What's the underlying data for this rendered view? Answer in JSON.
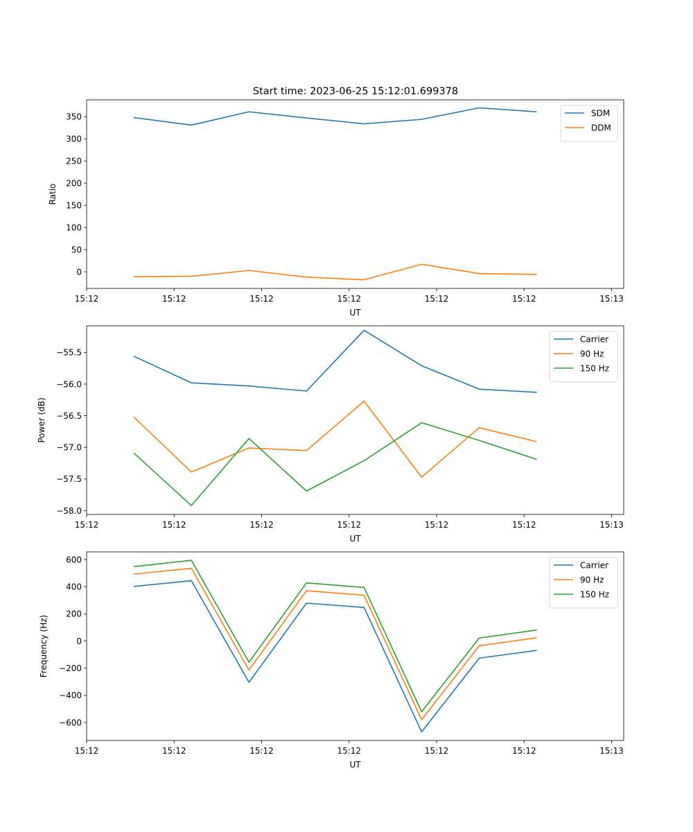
{
  "figure_title": "Start time: 2023-06-25 15:12:01.699378",
  "colors": {
    "blue": "#1f77b4",
    "orange": "#ff7f0e",
    "green": "#2ca02c"
  },
  "chart_data": [
    {
      "type": "line",
      "title": "Start time: 2023-06-25 15:12:01.699378",
      "xlabel": "UT",
      "ylabel": "Ratio",
      "x": [
        1,
        2,
        3,
        4,
        5,
        6,
        7,
        8
      ],
      "xlim": [
        0.18,
        9.51
      ],
      "x_ticks": [
        0.18,
        1.7,
        3.22,
        4.74,
        6.26,
        7.78,
        9.3
      ],
      "x_tick_labels": [
        "15:12",
        "15:12",
        "15:12",
        "15:12",
        "15:12",
        "15:12",
        "15:13"
      ],
      "ylim": [
        -37.5,
        388
      ],
      "y_ticks": [
        0,
        50,
        100,
        150,
        200,
        250,
        300,
        350
      ],
      "legend_position": "top-right",
      "series": [
        {
          "name": "SDM",
          "color": "#1f77b4",
          "values": [
            348,
            331,
            361,
            347,
            334,
            344,
            370,
            361
          ]
        },
        {
          "name": "DDM",
          "color": "#ff7f0e",
          "values": [
            -11,
            -10,
            3,
            -12,
            -18,
            17,
            -4,
            -6
          ]
        }
      ]
    },
    {
      "type": "line",
      "xlabel": "UT",
      "ylabel": "Power (dB)",
      "x": [
        1,
        2,
        3,
        4,
        5,
        6,
        7,
        8
      ],
      "xlim": [
        0.18,
        9.51
      ],
      "x_ticks": [
        0.18,
        1.7,
        3.22,
        4.74,
        6.26,
        7.78,
        9.3
      ],
      "x_tick_labels": [
        "15:12",
        "15:12",
        "15:12",
        "15:12",
        "15:12",
        "15:12",
        "15:13"
      ],
      "ylim": [
        -58.06,
        -55.08
      ],
      "y_ticks": [
        -58.0,
        -57.5,
        -57.0,
        -56.5,
        -56.0,
        -55.5
      ],
      "y_tick_labels": [
        "−58.0",
        "−57.5",
        "−57.0",
        "−56.5",
        "−56.0",
        "−55.5"
      ],
      "legend_position": "top-right",
      "series": [
        {
          "name": "Carrier",
          "color": "#1f77b4",
          "values": [
            -55.56,
            -55.98,
            -56.03,
            -56.11,
            -55.15,
            -55.71,
            -56.08,
            -56.13
          ]
        },
        {
          "name": "90 Hz",
          "color": "#ff7f0e",
          "values": [
            -56.52,
            -57.39,
            -57.01,
            -57.05,
            -56.27,
            -57.47,
            -56.69,
            -56.91
          ]
        },
        {
          "name": "150 Hz",
          "color": "#2ca02c",
          "values": [
            -57.09,
            -57.92,
            -56.86,
            -57.69,
            -57.21,
            -56.61,
            -56.89,
            -57.19
          ]
        }
      ]
    },
    {
      "type": "line",
      "xlabel": "UT",
      "ylabel": "Frequency (Hz)",
      "x": [
        1,
        2,
        3,
        4,
        5,
        6,
        7,
        8
      ],
      "xlim": [
        0.18,
        9.51
      ],
      "x_ticks": [
        0.18,
        1.7,
        3.22,
        4.74,
        6.26,
        7.78,
        9.3
      ],
      "x_tick_labels": [
        "15:12",
        "15:12",
        "15:12",
        "15:12",
        "15:12",
        "15:12",
        "15:13"
      ],
      "ylim": [
        -732,
        656
      ],
      "y_ticks": [
        -600,
        -400,
        -200,
        0,
        200,
        400,
        600
      ],
      "y_tick_labels": [
        "−600",
        "−400",
        "−200",
        "0",
        "200",
        "400",
        "600"
      ],
      "legend_position": "top-right",
      "series": [
        {
          "name": "Carrier",
          "color": "#1f77b4",
          "values": [
            402,
            444,
            -304,
            279,
            247,
            -669,
            -126,
            -69
          ]
        },
        {
          "name": "90 Hz",
          "color": "#ff7f0e",
          "values": [
            492,
            535,
            -213,
            370,
            337,
            -579,
            -35,
            24
          ]
        },
        {
          "name": "150 Hz",
          "color": "#2ca02c",
          "values": [
            548,
            594,
            -156,
            428,
            394,
            -521,
            22,
            81
          ]
        }
      ]
    }
  ]
}
